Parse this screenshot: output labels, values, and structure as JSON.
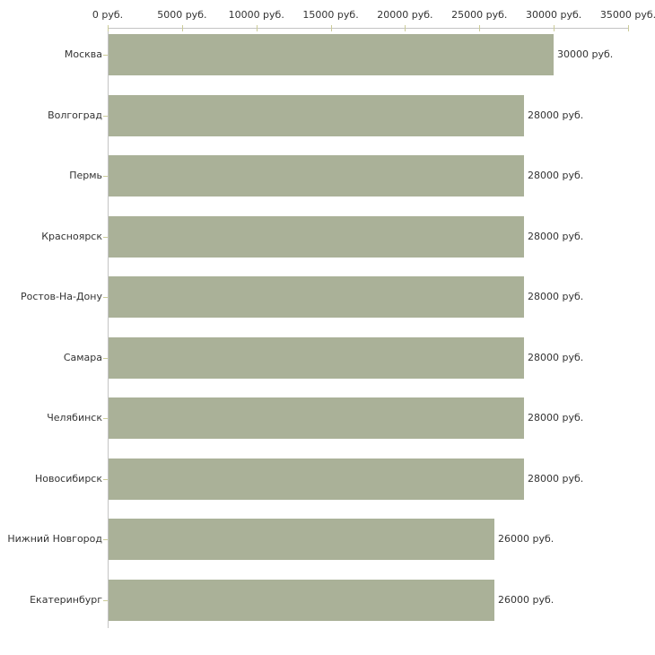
{
  "chart_data": {
    "type": "bar",
    "orientation": "horizontal",
    "categories": [
      "Москва",
      "Волгоград",
      "Пермь",
      "Красноярск",
      "Ростов-На-Дону",
      "Самара",
      "Челябинск",
      "Новосибирск",
      "Нижний Новгород",
      "Екатеринбург"
    ],
    "values": [
      30000,
      28000,
      28000,
      28000,
      28000,
      28000,
      28000,
      28000,
      26000,
      26000
    ],
    "value_labels": [
      "30000 руб.",
      "28000 руб.",
      "28000 руб.",
      "28000 руб.",
      "28000 руб.",
      "28000 руб.",
      "28000 руб.",
      "28000 руб.",
      "26000 руб.",
      "26000 руб."
    ],
    "x_ticks": [
      "0 руб.",
      "5000 руб.",
      "10000 руб.",
      "15000 руб.",
      "20000 руб.",
      "25000 руб.",
      "30000 руб.",
      "35000 руб."
    ],
    "x_tick_values": [
      0,
      5000,
      10000,
      15000,
      20000,
      25000,
      30000,
      35000
    ],
    "xlim": [
      0,
      35000
    ],
    "grid": false,
    "legend": false,
    "axis_position": "top",
    "colors": {
      "bar": "#aab198",
      "axis": "#c4c4c4",
      "tick": "#cccc99",
      "text": "#333333",
      "background": "#ffffff"
    }
  }
}
